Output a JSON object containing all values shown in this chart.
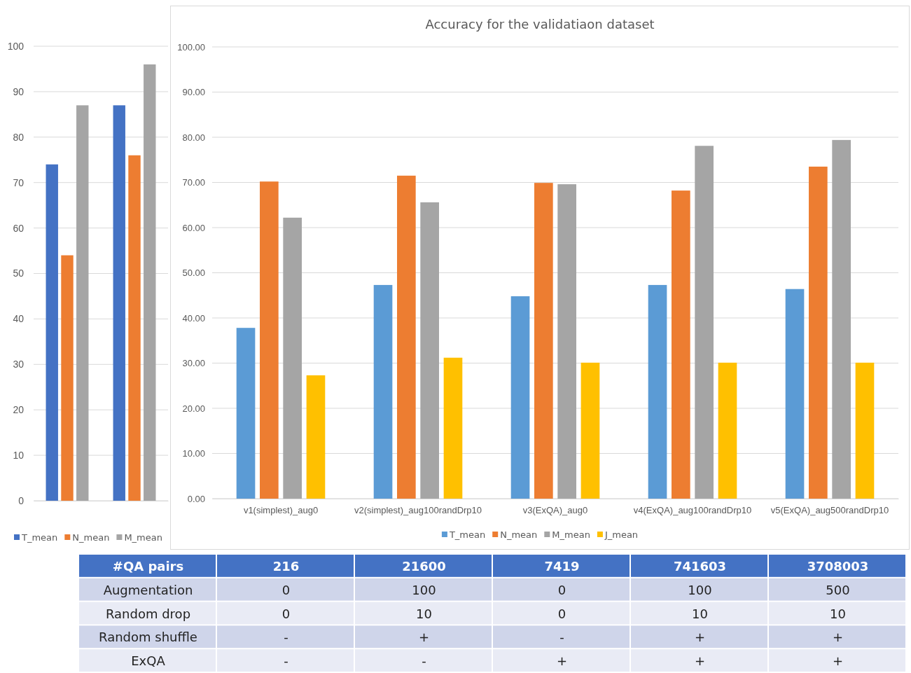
{
  "chart_data": [
    {
      "type": "bar",
      "categories": [
        null,
        null
      ],
      "series": [
        {
          "name": "T_mean",
          "color": "#4472c4",
          "values": [
            74,
            87
          ]
        },
        {
          "name": "N_mean",
          "color": "#ed7d31",
          "values": [
            54,
            76
          ]
        },
        {
          "name": "M_mean",
          "color": "#a5a5a5",
          "values": [
            87,
            96
          ]
        }
      ],
      "ylim": [
        0,
        100
      ],
      "yticks": [
        0,
        10,
        20,
        30,
        40,
        50,
        60,
        70,
        80,
        90,
        100
      ],
      "grid": "y",
      "legend": "bottom"
    },
    {
      "type": "bar",
      "title": "Accuracy for the validatiaon dataset",
      "categories": [
        "v1(simplest)_aug0",
        "v2(simplest)_aug100randDrp10",
        "v3(ExQA)_aug0",
        "v4(ExQA)_aug100randDrp10",
        "v5(ExQA)_aug500randDrp10"
      ],
      "series": [
        {
          "name": "T_mean",
          "color": "#5b9bd5",
          "values": [
            37.8,
            47.3,
            44.8,
            47.3,
            46.4
          ]
        },
        {
          "name": "N_mean",
          "color": "#ed7d31",
          "values": [
            70.2,
            71.5,
            69.9,
            68.2,
            73.5
          ]
        },
        {
          "name": "M_mean",
          "color": "#a5a5a5",
          "values": [
            62.2,
            65.6,
            69.6,
            78.1,
            79.4
          ]
        },
        {
          "name": "J_mean",
          "color": "#ffc000",
          "values": [
            27.3,
            31.2,
            30.1,
            30.1,
            30.1
          ]
        }
      ],
      "ylim": [
        0,
        100
      ],
      "yticks": [
        {
          "value": 0,
          "label": "0.00"
        },
        {
          "value": 10,
          "label": "10.00"
        },
        {
          "value": 20,
          "label": "20.00"
        },
        {
          "value": 30,
          "label": "30.00"
        },
        {
          "value": 40,
          "label": "40.00"
        },
        {
          "value": 50,
          "label": "50.00"
        },
        {
          "value": 60,
          "label": "60.00"
        },
        {
          "value": 70,
          "label": "70.00"
        },
        {
          "value": 80,
          "label": "80.00"
        },
        {
          "value": 90,
          "label": "90.00"
        },
        {
          "value": 100,
          "label": "100.00"
        }
      ],
      "grid": "y",
      "legend": "bottom"
    },
    {
      "type": "other",
      "categories": [
        "#QA pairs",
        "216",
        "21600",
        "7419",
        "741603",
        "3708003"
      ],
      "y_categories": [
        "Augmentation",
        "Random drop",
        "Random shuffle",
        "ExQA"
      ],
      "cell_labels": [
        [
          "0",
          "100",
          "0",
          "100",
          "500"
        ],
        [
          "0",
          "10",
          "0",
          "10",
          "10"
        ],
        [
          "-",
          "+",
          "-",
          "+",
          "+"
        ],
        [
          "-",
          "-",
          "+",
          "+",
          "+"
        ]
      ]
    }
  ]
}
